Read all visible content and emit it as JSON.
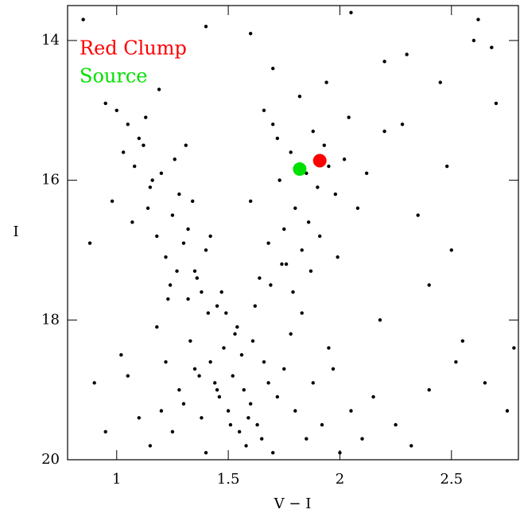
{
  "chart_data": {
    "type": "scatter",
    "xlabel": "V − I",
    "ylabel": "I",
    "color": "#000000",
    "x": [
      1.45,
      1.52,
      1.6,
      1.38,
      1.55,
      1.68,
      1.42,
      1.58,
      1.5,
      1.63,
      1.35,
      1.48,
      1.72,
      1.56,
      1.4,
      1.65,
      1.53,
      1.46,
      1.61,
      1.57,
      1.3,
      1.75,
      1.44,
      1.51,
      1.66,
      1.37,
      1.59,
      1.7,
      1.49,
      1.54,
      1.25,
      1.8,
      1.33,
      1.62,
      1.47,
      1.78,
      1.28,
      1.69,
      1.41,
      1.85,
      1.2,
      1.88,
      1.15,
      1.92,
      1.36,
      1.74,
      1.22,
      1.95,
      1.1,
      2.0,
      1.05,
      2.05,
      1.18,
      2.1,
      1.32,
      1.83,
      1.27,
      1.97,
      0.95,
      2.15,
      1.78,
      1.85,
      1.9,
      1.72,
      1.95,
      1.8,
      1.88,
      1.75,
      1.98,
      1.83,
      1.7,
      1.93,
      1.68,
      2.02,
      1.76,
      1.86,
      1.64,
      1.99,
      1.73,
      2.08,
      1.66,
      1.82,
      2.04,
      1.91,
      1.6,
      1.79,
      2.12,
      1.87,
      1.94,
      2.2,
      1.05,
      1.12,
      1.2,
      1.08,
      1.15,
      1.25,
      1.18,
      1.3,
      1.22,
      1.35,
      1.0,
      1.1,
      1.28,
      1.16,
      1.32,
      1.38,
      1.24,
      1.03,
      1.4,
      1.14,
      0.95,
      1.26,
      1.13,
      1.34,
      1.07,
      1.42,
      1.19,
      1.31,
      1.45,
      1.23,
      0.85,
      0.9,
      1.02,
      2.3,
      2.45,
      2.6,
      2.7,
      2.55,
      2.4,
      2.25,
      2.5,
      2.65,
      2.35,
      2.75,
      2.2,
      0.88,
      0.98,
      2.05,
      2.62,
      2.48,
      1.6,
      1.7,
      2.28,
      2.4,
      2.52,
      2.18,
      1.4,
      2.78,
      2.68,
      2.32
    ],
    "y": [
      19.0,
      18.8,
      19.2,
      19.4,
      19.6,
      18.9,
      18.6,
      19.8,
      19.3,
      19.5,
      18.7,
      18.4,
      19.1,
      18.5,
      19.9,
      19.7,
      18.2,
      19.1,
      18.3,
      19.0,
      19.2,
      18.7,
      18.9,
      19.5,
      18.6,
      18.8,
      19.4,
      19.9,
      17.9,
      18.1,
      19.6,
      19.3,
      18.3,
      17.8,
      17.6,
      18.2,
      19.0,
      17.5,
      17.9,
      19.7,
      19.3,
      18.9,
      19.8,
      19.5,
      17.4,
      17.2,
      18.6,
      18.4,
      19.4,
      19.9,
      18.8,
      19.3,
      18.1,
      19.7,
      17.7,
      17.9,
      17.3,
      18.7,
      19.6,
      19.1,
      15.6,
      15.9,
      16.1,
      15.4,
      15.8,
      16.4,
      15.3,
      16.7,
      16.2,
      17.0,
      15.2,
      15.5,
      16.9,
      15.7,
      17.2,
      16.6,
      17.4,
      17.1,
      16.0,
      16.4,
      15.0,
      14.8,
      15.1,
      16.8,
      16.3,
      17.6,
      15.9,
      17.3,
      14.6,
      15.3,
      15.2,
      15.5,
      15.9,
      15.8,
      16.1,
      16.5,
      16.8,
      16.9,
      17.1,
      17.3,
      15.0,
      15.4,
      16.2,
      16.0,
      16.7,
      17.6,
      17.5,
      15.6,
      17.0,
      16.4,
      14.9,
      15.7,
      15.1,
      16.3,
      16.6,
      16.8,
      14.7,
      15.5,
      17.8,
      17.7,
      13.7,
      18.9,
      18.5,
      14.2,
      14.6,
      14.0,
      14.9,
      18.3,
      19.0,
      19.5,
      17.0,
      18.9,
      16.5,
      19.3,
      14.3,
      16.9,
      16.3,
      13.6,
      13.7,
      15.8,
      13.9,
      14.4,
      15.2,
      17.5,
      18.6,
      18.0,
      13.8,
      18.4,
      14.1,
      19.8
    ],
    "series": [
      {
        "name": "Red Clump",
        "color": "#ff0000",
        "x": [
          1.91
        ],
        "y": [
          15.72
        ]
      },
      {
        "name": "Source",
        "color": "#00e000",
        "x": [
          1.82
        ],
        "y": [
          15.84
        ]
      }
    ],
    "xlim": [
      0.78,
      2.8
    ],
    "ylim": [
      20,
      13.5
    ],
    "xticks": [
      1,
      1.5,
      2,
      2.5
    ],
    "yticks": [
      14,
      16,
      18,
      20
    ]
  }
}
